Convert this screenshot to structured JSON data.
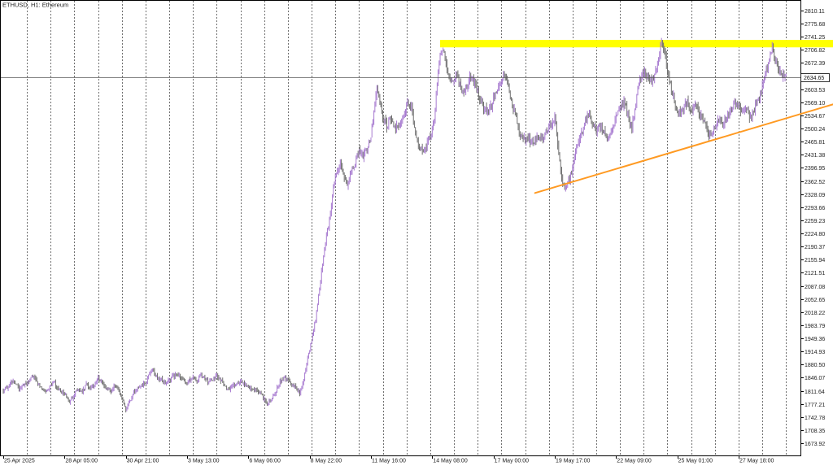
{
  "chart_data": {
    "type": "candlestick",
    "title": "ETHUSD, H1:  Ethereum",
    "timeframe": "H1",
    "y_ticks": [
      2810.11,
      2775.68,
      2741.25,
      2706.82,
      2672.39,
      2603.53,
      2569.1,
      2534.67,
      2500.24,
      2465.81,
      2431.38,
      2396.95,
      2362.52,
      2328.09,
      2293.66,
      2259.23,
      2224.8,
      2190.37,
      2155.94,
      2121.51,
      2087.08,
      2052.65,
      2018.22,
      1983.79,
      1949.36,
      1914.93,
      1880.5,
      1846.07,
      1811.64,
      1777.21,
      1742.78,
      1708.35,
      1673.92
    ],
    "ylim": [
      1655,
      2826
    ],
    "x_labels": [
      "25 Apr 2025",
      "28 Apr 05:00",
      "30 Apr 21:00",
      "3 May 13:00",
      "6 May 06:00",
      "8 May 22:00",
      "11 May 16:00",
      "14 May 08:00",
      "17 May 00:00",
      "19 May 17:00",
      "22 May 09:00",
      "25 May 01:00",
      "27 May 18:00"
    ],
    "current_price": 2634.65,
    "grid": "vertical-dashed",
    "colors": {
      "bull": "#a77ad0",
      "bear": "#6f6f6f",
      "resistance": "#ffff00",
      "trendline": "#ff9a22",
      "price_line": "#555555"
    },
    "resistance_zone": {
      "from_time": "13 May 2025 10:00",
      "to_time": "5 Jun 2025 06:00",
      "price_low": 2713.5,
      "price_high": 2733.0
    },
    "trendline": {
      "start": {
        "time": "17 May 2025 10:00",
        "price": 2331
      },
      "end": {
        "time": "4 Jun 2025 04:00",
        "price": 2660
      }
    },
    "price_path": [
      [
        0,
        1812
      ],
      [
        4,
        1820
      ],
      [
        8,
        1838
      ],
      [
        12,
        1830
      ],
      [
        16,
        1818
      ],
      [
        20,
        1826
      ],
      [
        24,
        1828
      ],
      [
        28,
        1845
      ],
      [
        31,
        1850
      ],
      [
        35,
        1828
      ],
      [
        39,
        1816
      ],
      [
        43,
        1805
      ],
      [
        47,
        1822
      ],
      [
        51,
        1835
      ],
      [
        55,
        1818
      ],
      [
        59,
        1810
      ],
      [
        63,
        1798
      ],
      [
        67,
        1782
      ],
      [
        71,
        1800
      ],
      [
        76,
        1818
      ],
      [
        80,
        1810
      ],
      [
        84,
        1828
      ],
      [
        88,
        1818
      ],
      [
        92,
        1830
      ],
      [
        96,
        1845
      ],
      [
        100,
        1830
      ],
      [
        104,
        1815
      ],
      [
        108,
        1810
      ],
      [
        112,
        1822
      ],
      [
        116,
        1816
      ],
      [
        120,
        1790
      ],
      [
        124,
        1762
      ],
      [
        128,
        1785
      ],
      [
        132,
        1808
      ],
      [
        136,
        1822
      ],
      [
        140,
        1828
      ],
      [
        144,
        1832
      ],
      [
        148,
        1855
      ],
      [
        152,
        1865
      ],
      [
        156,
        1845
      ],
      [
        160,
        1842
      ],
      [
        164,
        1830
      ],
      [
        168,
        1838
      ],
      [
        172,
        1850
      ],
      [
        176,
        1858
      ],
      [
        180,
        1846
      ],
      [
        184,
        1830
      ],
      [
        188,
        1838
      ],
      [
        192,
        1846
      ],
      [
        196,
        1840
      ],
      [
        200,
        1850
      ],
      [
        204,
        1845
      ],
      [
        208,
        1835
      ],
      [
        212,
        1842
      ],
      [
        216,
        1852
      ],
      [
        220,
        1840
      ],
      [
        224,
        1825
      ],
      [
        228,
        1812
      ],
      [
        232,
        1822
      ],
      [
        236,
        1830
      ],
      [
        240,
        1835
      ],
      [
        244,
        1830
      ],
      [
        248,
        1822
      ],
      [
        252,
        1812
      ],
      [
        256,
        1815
      ],
      [
        260,
        1806
      ],
      [
        264,
        1790
      ],
      [
        268,
        1778
      ],
      [
        272,
        1788
      ],
      [
        276,
        1812
      ],
      [
        280,
        1835
      ],
      [
        284,
        1845
      ],
      [
        288,
        1840
      ],
      [
        292,
        1830
      ],
      [
        296,
        1818
      ],
      [
        300,
        1805
      ],
      [
        304,
        1840
      ],
      [
        308,
        1900
      ],
      [
        312,
        1945
      ],
      [
        316,
        2000
      ],
      [
        319,
        2060
      ],
      [
        321,
        2100
      ],
      [
        323,
        2150
      ],
      [
        326,
        2200
      ],
      [
        329,
        2250
      ],
      [
        332,
        2300
      ],
      [
        335,
        2360
      ],
      [
        338,
        2390
      ],
      [
        341,
        2410
      ],
      [
        344,
        2375
      ],
      [
        348,
        2355
      ],
      [
        352,
        2385
      ],
      [
        356,
        2410
      ],
      [
        360,
        2445
      ],
      [
        364,
        2430
      ],
      [
        368,
        2450
      ],
      [
        372,
        2480
      ],
      [
        375,
        2550
      ],
      [
        378,
        2600
      ],
      [
        381,
        2570
      ],
      [
        384,
        2530
      ],
      [
        388,
        2510
      ],
      [
        392,
        2525
      ],
      [
        396,
        2505
      ],
      [
        400,
        2500
      ],
      [
        404,
        2525
      ],
      [
        407,
        2550
      ],
      [
        410,
        2570
      ],
      [
        413,
        2555
      ],
      [
        416,
        2500
      ],
      [
        420,
        2460
      ],
      [
        424,
        2440
      ],
      [
        428,
        2455
      ],
      [
        432,
        2480
      ],
      [
        436,
        2510
      ],
      [
        439,
        2620
      ],
      [
        441,
        2680
      ],
      [
        443,
        2706
      ],
      [
        445,
        2712
      ],
      [
        447,
        2680
      ],
      [
        450,
        2650
      ],
      [
        454,
        2620
      ],
      [
        458,
        2640
      ],
      [
        462,
        2620
      ],
      [
        466,
        2590
      ],
      [
        470,
        2620
      ],
      [
        474,
        2640
      ],
      [
        478,
        2610
      ],
      [
        482,
        2580
      ],
      [
        486,
        2555
      ],
      [
        490,
        2545
      ],
      [
        494,
        2560
      ],
      [
        498,
        2590
      ],
      [
        502,
        2610
      ],
      [
        506,
        2650
      ],
      [
        510,
        2620
      ],
      [
        514,
        2575
      ],
      [
        518,
        2540
      ],
      [
        522,
        2490
      ],
      [
        526,
        2470
      ],
      [
        530,
        2480
      ],
      [
        534,
        2465
      ],
      [
        538,
        2470
      ],
      [
        542,
        2480
      ],
      [
        546,
        2475
      ],
      [
        550,
        2490
      ],
      [
        554,
        2510
      ],
      [
        558,
        2530
      ],
      [
        560,
        2490
      ],
      [
        562,
        2440
      ],
      [
        564,
        2390
      ],
      [
        566,
        2360
      ],
      [
        568,
        2340
      ],
      [
        572,
        2360
      ],
      [
        576,
        2400
      ],
      [
        580,
        2450
      ],
      [
        584,
        2480
      ],
      [
        588,
        2510
      ],
      [
        592,
        2540
      ],
      [
        596,
        2520
      ],
      [
        600,
        2490
      ],
      [
        604,
        2505
      ],
      [
        608,
        2490
      ],
      [
        612,
        2470
      ],
      [
        616,
        2495
      ],
      [
        620,
        2530
      ],
      [
        624,
        2555
      ],
      [
        628,
        2570
      ],
      [
        632,
        2540
      ],
      [
        636,
        2500
      ],
      [
        640,
        2570
      ],
      [
        644,
        2630
      ],
      [
        648,
        2650
      ],
      [
        652,
        2640
      ],
      [
        656,
        2620
      ],
      [
        660,
        2650
      ],
      [
        664,
        2700
      ],
      [
        666,
        2735
      ],
      [
        668,
        2710
      ],
      [
        672,
        2660
      ],
      [
        676,
        2600
      ],
      [
        680,
        2560
      ],
      [
        684,
        2540
      ],
      [
        688,
        2555
      ],
      [
        692,
        2570
      ],
      [
        696,
        2545
      ],
      [
        700,
        2560
      ],
      [
        704,
        2545
      ],
      [
        708,
        2520
      ],
      [
        712,
        2500
      ],
      [
        716,
        2475
      ],
      [
        720,
        2510
      ],
      [
        724,
        2525
      ],
      [
        728,
        2510
      ],
      [
        732,
        2535
      ],
      [
        736,
        2550
      ],
      [
        740,
        2570
      ],
      [
        744,
        2560
      ],
      [
        748,
        2545
      ],
      [
        752,
        2555
      ],
      [
        756,
        2530
      ],
      [
        760,
        2550
      ],
      [
        764,
        2575
      ],
      [
        767,
        2600
      ],
      [
        770,
        2640
      ],
      [
        773,
        2660
      ],
      [
        776,
        2700
      ],
      [
        778,
        2710
      ],
      [
        781,
        2680
      ],
      [
        784,
        2660
      ],
      [
        787,
        2645
      ],
      [
        790,
        2640
      ],
      [
        792,
        2634.65
      ]
    ]
  }
}
